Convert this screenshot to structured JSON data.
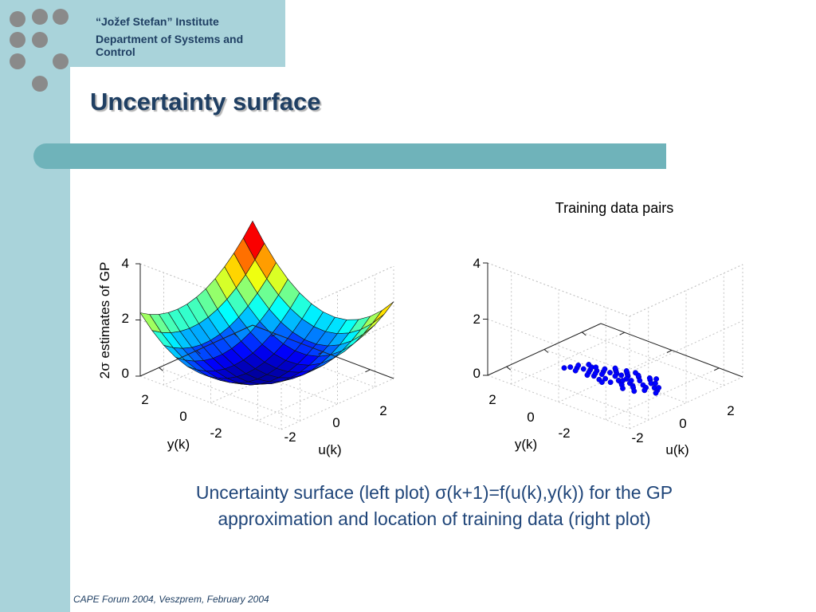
{
  "header": {
    "institute": "“Jožef Stefan” Institute",
    "department_line1": "Department of Systems and",
    "department_line2": "Control"
  },
  "slide": {
    "title": "Uncertainty surface",
    "caption_line1": "Uncertainty surface (left plot) σ(k+1)=f(u(k),y(k)) for the GP",
    "caption_line2": "approximation and location of training data (right plot)",
    "footer": "CAPE Forum 2004, Veszprem, February 2004"
  },
  "colors": {
    "sidebar": "#a9d3da",
    "title_bar": "#6fb3ba",
    "text": "#1f3f63",
    "caption": "#1f4579",
    "markers": "#0000ff"
  },
  "chart_data": [
    {
      "type": "surface",
      "title": "",
      "zlabel_prefix": "2",
      "zlabel_symbol": "σ",
      "zlabel_rest": " estimates of GP",
      "xlabel": "u(k)",
      "ylabel": "y(k)",
      "x_ticks": [
        "-2",
        "0",
        "2"
      ],
      "y_ticks": [
        "2",
        "0",
        "-2"
      ],
      "z_ticks": [
        "4",
        "2",
        "0"
      ],
      "xlim": [
        -3,
        3
      ],
      "ylim": [
        -3,
        3
      ],
      "zlim": [
        0,
        4
      ],
      "colormap": "jet",
      "grid": true,
      "model": "bowl-shaped surface, minimum about 0.1 near the centre, rising to about 2-3.5 at the edges"
    },
    {
      "type": "scatter3d",
      "title": "Training data pairs",
      "xlabel": "u(k)",
      "ylabel": "y(k)",
      "x_ticks": [
        "-2",
        "0",
        "2"
      ],
      "y_ticks": [
        "2",
        "0",
        "-2"
      ],
      "z_ticks": [
        "4",
        "2",
        "0"
      ],
      "xlim": [
        -3,
        3
      ],
      "ylim": [
        -3,
        3
      ],
      "zlim": [
        0,
        4
      ],
      "grid": true,
      "marker_color": "#0000ff",
      "points_uy": [
        [
          -1.5,
          0.5
        ],
        [
          -1.3,
          0.4
        ],
        [
          -1.1,
          0.3
        ],
        [
          -0.9,
          0.2
        ],
        [
          -0.7,
          0.1
        ],
        [
          -0.5,
          0.0
        ],
        [
          -0.3,
          -0.1
        ],
        [
          -0.1,
          -0.2
        ],
        [
          0.1,
          -0.2
        ],
        [
          0.3,
          -0.3
        ],
        [
          -1.4,
          0.2
        ],
        [
          -1.0,
          0.0
        ],
        [
          -0.6,
          -0.2
        ],
        [
          -0.2,
          -0.3
        ],
        [
          0.2,
          -0.4
        ],
        [
          0.6,
          -0.5
        ],
        [
          1.0,
          -0.6
        ],
        [
          -0.8,
          0.4
        ],
        [
          -0.4,
          0.2
        ],
        [
          0.0,
          0.0
        ],
        [
          0.4,
          -0.1
        ],
        [
          0.8,
          -0.3
        ],
        [
          1.2,
          -0.4
        ],
        [
          -0.5,
          0.5
        ],
        [
          -0.1,
          0.4
        ],
        [
          0.3,
          0.2
        ],
        [
          0.7,
          0.1
        ],
        [
          1.1,
          -0.1
        ],
        [
          1.5,
          -0.2
        ],
        [
          -1.2,
          0.6
        ],
        [
          0.5,
          0.3
        ],
        [
          0.9,
          0.2
        ],
        [
          1.3,
          0.0
        ],
        [
          1.7,
          -0.1
        ],
        [
          -0.2,
          0.6
        ],
        [
          0.2,
          0.5
        ],
        [
          0.6,
          0.4
        ],
        [
          1.0,
          0.3
        ],
        [
          1.4,
          0.2
        ],
        [
          -1.6,
          0.7
        ],
        [
          -0.9,
          -0.1
        ],
        [
          -0.3,
          -0.4
        ],
        [
          0.1,
          -0.5
        ],
        [
          0.5,
          -0.6
        ],
        [
          0.9,
          -0.7
        ],
        [
          1.3,
          -0.5
        ],
        [
          1.6,
          -0.3
        ],
        [
          -0.7,
          0.6
        ],
        [
          0.0,
          0.7
        ],
        [
          0.8,
          0.6
        ],
        [
          1.2,
          0.5
        ],
        [
          1.8,
          0.1
        ],
        [
          -1.2,
          -0.1
        ],
        [
          -0.4,
          -0.5
        ],
        [
          0.3,
          -0.7
        ],
        [
          1.1,
          -0.8
        ],
        [
          0.0,
          -0.6
        ],
        [
          0.6,
          -0.1
        ],
        [
          -0.6,
          0.3
        ],
        [
          0.4,
          0.1
        ]
      ]
    }
  ]
}
